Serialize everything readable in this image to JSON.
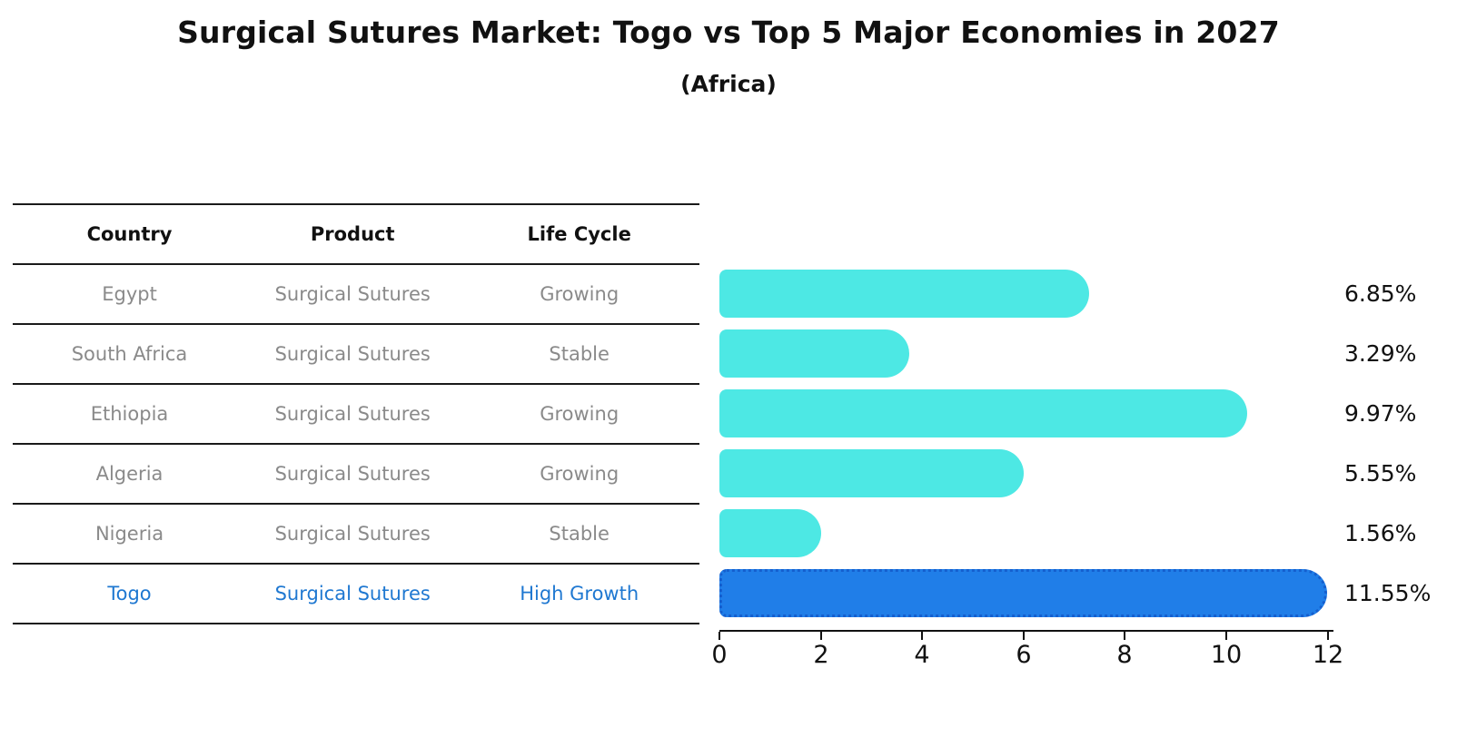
{
  "title": "Surgical Sutures Market: Togo vs Top 5 Major Economies in 2027",
  "subtitle": "(Africa)",
  "table": {
    "headers": [
      "Country",
      "Product",
      "Life Cycle"
    ],
    "rows": [
      {
        "country": "Egypt",
        "product": "Surgical Sutures",
        "life_cycle": "Growing",
        "highlight": false
      },
      {
        "country": "South Africa",
        "product": "Surgical Sutures",
        "life_cycle": "Stable",
        "highlight": false
      },
      {
        "country": "Ethiopia",
        "product": "Surgical Sutures",
        "life_cycle": "Growing",
        "highlight": false
      },
      {
        "country": "Algeria",
        "product": "Surgical Sutures",
        "life_cycle": "Growing",
        "highlight": false
      },
      {
        "country": "Nigeria",
        "product": "Surgical Sutures",
        "life_cycle": "Stable",
        "highlight": false
      },
      {
        "country": "Togo",
        "product": "Surgical Sutures",
        "life_cycle": "High Growth",
        "highlight": true
      }
    ]
  },
  "chart_data": {
    "type": "bar",
    "orientation": "horizontal",
    "title": "Surgical Sutures Market: Togo vs Top 5 Major Economies in 2027",
    "subtitle": "(Africa)",
    "categories": [
      "Egypt",
      "South Africa",
      "Ethiopia",
      "Algeria",
      "Nigeria",
      "Togo"
    ],
    "values": [
      6.85,
      3.29,
      9.97,
      5.55,
      1.56,
      11.55
    ],
    "value_labels": [
      "6.85%",
      "3.29%",
      "9.97%",
      "5.55%",
      "1.56%",
      "11.55%"
    ],
    "unit": "%",
    "xlabel": "",
    "ylabel": "",
    "xlim": [
      0,
      12
    ],
    "xticks": [
      0,
      2,
      4,
      6,
      8,
      10,
      12
    ],
    "grid": false,
    "legend": null,
    "highlight_index": 5,
    "colors": {
      "default_bar": "#4DE8E4",
      "highlight_bar": "#207EE8",
      "highlight_bar_edge": "#155FCE",
      "highlight_text": "#1F78D1",
      "row_text": "#8A8A8A",
      "header_text": "#111111",
      "axis": "#111111",
      "value_label": "#111111"
    }
  }
}
